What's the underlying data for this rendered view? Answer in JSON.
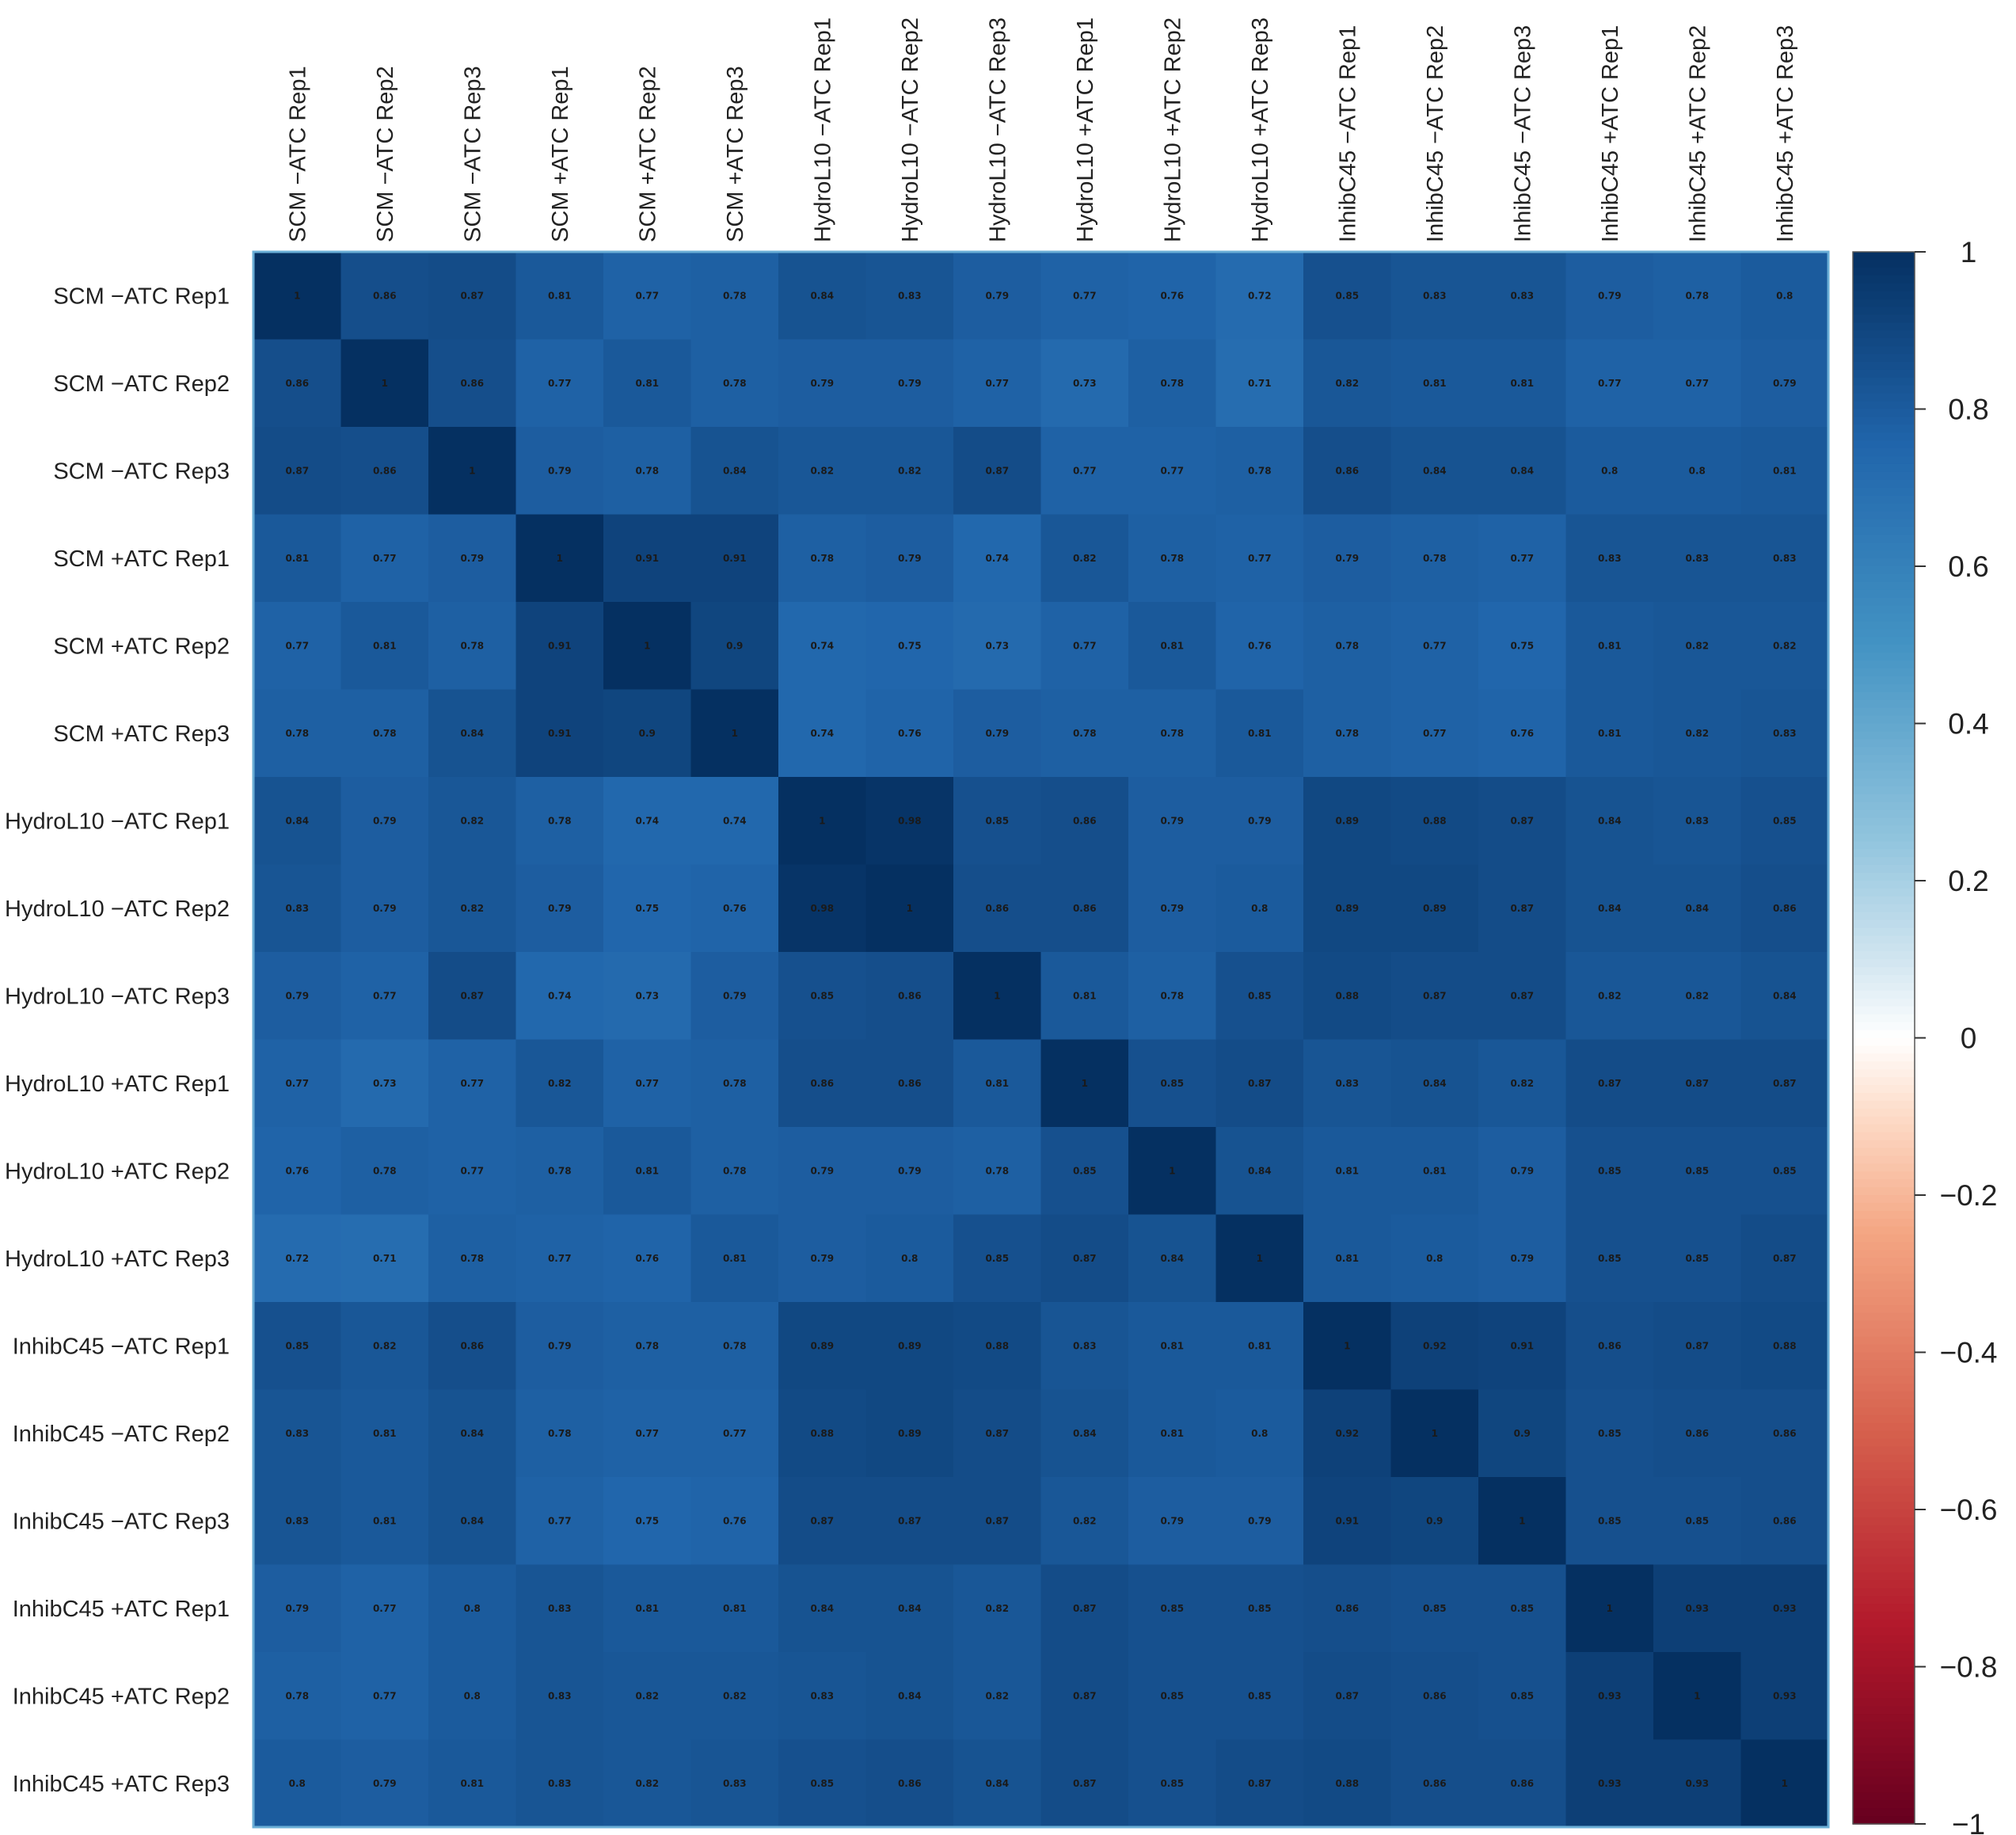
{
  "chart_data": {
    "type": "heatmap",
    "title": "",
    "labels": [
      "SCM −ATC Rep1",
      "SCM −ATC Rep2",
      "SCM −ATC Rep3",
      "SCM +ATC Rep1",
      "SCM +ATC Rep2",
      "SCM +ATC Rep3",
      "HydroL10 −ATC Rep1",
      "HydroL10 −ATC Rep2",
      "HydroL10 −ATC Rep3",
      "HydroL10 +ATC Rep1",
      "HydroL10 +ATC Rep2",
      "HydroL10 +ATC Rep3",
      "InhibC45 −ATC Rep1",
      "InhibC45 −ATC Rep2",
      "InhibC45 −ATC Rep3",
      "InhibC45 +ATC Rep1",
      "InhibC45 +ATC Rep2",
      "InhibC45 +ATC Rep3"
    ],
    "matrix": [
      [
        "1",
        "0.86",
        "0.87",
        "0.81",
        "0.77",
        "0.78",
        "0.84",
        "0.83",
        "0.79",
        "0.77",
        "0.76",
        "0.72",
        "0.85",
        "0.83",
        "0.83",
        "0.79",
        "0.78",
        "0.8"
      ],
      [
        "0.86",
        "1",
        "0.86",
        "0.77",
        "0.81",
        "0.78",
        "0.79",
        "0.79",
        "0.77",
        "0.73",
        "0.78",
        "0.71",
        "0.82",
        "0.81",
        "0.81",
        "0.77",
        "0.77",
        "0.79"
      ],
      [
        "0.87",
        "0.86",
        "1",
        "0.79",
        "0.78",
        "0.84",
        "0.82",
        "0.82",
        "0.87",
        "0.77",
        "0.77",
        "0.78",
        "0.86",
        "0.84",
        "0.84",
        "0.8",
        "0.8",
        "0.81"
      ],
      [
        "0.81",
        "0.77",
        "0.79",
        "1",
        "0.91",
        "0.91",
        "0.78",
        "0.79",
        "0.74",
        "0.82",
        "0.78",
        "0.77",
        "0.79",
        "0.78",
        "0.77",
        "0.83",
        "0.83",
        "0.83"
      ],
      [
        "0.77",
        "0.81",
        "0.78",
        "0.91",
        "1",
        "0.9",
        "0.74",
        "0.75",
        "0.73",
        "0.77",
        "0.81",
        "0.76",
        "0.78",
        "0.77",
        "0.75",
        "0.81",
        "0.82",
        "0.82"
      ],
      [
        "0.78",
        "0.78",
        "0.84",
        "0.91",
        "0.9",
        "1",
        "0.74",
        "0.76",
        "0.79",
        "0.78",
        "0.78",
        "0.81",
        "0.78",
        "0.77",
        "0.76",
        "0.81",
        "0.82",
        "0.83"
      ],
      [
        "0.84",
        "0.79",
        "0.82",
        "0.78",
        "0.74",
        "0.74",
        "1",
        "0.98",
        "0.85",
        "0.86",
        "0.79",
        "0.79",
        "0.89",
        "0.88",
        "0.87",
        "0.84",
        "0.83",
        "0.85"
      ],
      [
        "0.83",
        "0.79",
        "0.82",
        "0.79",
        "0.75",
        "0.76",
        "0.98",
        "1",
        "0.86",
        "0.86",
        "0.79",
        "0.8",
        "0.89",
        "0.89",
        "0.87",
        "0.84",
        "0.84",
        "0.86"
      ],
      [
        "0.79",
        "0.77",
        "0.87",
        "0.74",
        "0.73",
        "0.79",
        "0.85",
        "0.86",
        "1",
        "0.81",
        "0.78",
        "0.85",
        "0.88",
        "0.87",
        "0.87",
        "0.82",
        "0.82",
        "0.84"
      ],
      [
        "0.77",
        "0.73",
        "0.77",
        "0.82",
        "0.77",
        "0.78",
        "0.86",
        "0.86",
        "0.81",
        "1",
        "0.85",
        "0.87",
        "0.83",
        "0.84",
        "0.82",
        "0.87",
        "0.87",
        "0.87"
      ],
      [
        "0.76",
        "0.78",
        "0.77",
        "0.78",
        "0.81",
        "0.78",
        "0.79",
        "0.79",
        "0.78",
        "0.85",
        "1",
        "0.84",
        "0.81",
        "0.81",
        "0.79",
        "0.85",
        "0.85",
        "0.85"
      ],
      [
        "0.72",
        "0.71",
        "0.78",
        "0.77",
        "0.76",
        "0.81",
        "0.79",
        "0.8",
        "0.85",
        "0.87",
        "0.84",
        "1",
        "0.81",
        "0.8",
        "0.79",
        "0.85",
        "0.85",
        "0.87"
      ],
      [
        "0.85",
        "0.82",
        "0.86",
        "0.79",
        "0.78",
        "0.78",
        "0.89",
        "0.89",
        "0.88",
        "0.83",
        "0.81",
        "0.81",
        "1",
        "0.92",
        "0.91",
        "0.86",
        "0.87",
        "0.88"
      ],
      [
        "0.83",
        "0.81",
        "0.84",
        "0.78",
        "0.77",
        "0.77",
        "0.88",
        "0.89",
        "0.87",
        "0.84",
        "0.81",
        "0.8",
        "0.92",
        "1",
        "0.9",
        "0.85",
        "0.86",
        "0.86"
      ],
      [
        "0.83",
        "0.81",
        "0.84",
        "0.77",
        "0.75",
        "0.76",
        "0.87",
        "0.87",
        "0.87",
        "0.82",
        "0.79",
        "0.79",
        "0.91",
        "0.9",
        "1",
        "0.85",
        "0.85",
        "0.86"
      ],
      [
        "0.79",
        "0.77",
        "0.8",
        "0.83",
        "0.81",
        "0.81",
        "0.84",
        "0.84",
        "0.82",
        "0.87",
        "0.85",
        "0.85",
        "0.86",
        "0.85",
        "0.85",
        "1",
        "0.93",
        "0.93"
      ],
      [
        "0.78",
        "0.77",
        "0.8",
        "0.83",
        "0.82",
        "0.82",
        "0.83",
        "0.84",
        "0.82",
        "0.87",
        "0.85",
        "0.85",
        "0.87",
        "0.86",
        "0.85",
        "0.93",
        "1",
        "0.93"
      ],
      [
        "0.8",
        "0.79",
        "0.81",
        "0.83",
        "0.82",
        "0.83",
        "0.85",
        "0.86",
        "0.84",
        "0.87",
        "0.85",
        "0.87",
        "0.88",
        "0.86",
        "0.86",
        "0.93",
        "0.93",
        "1"
      ]
    ],
    "colorbar": {
      "ticks": [
        "1",
        "0.8",
        "0.6",
        "0.4",
        "0.2",
        "0",
        "−0.2",
        "−0.4",
        "−0.6",
        "−0.8",
        "−1"
      ],
      "range": [
        -1,
        1
      ]
    },
    "colors": {
      "neg": "#67001F",
      "mid": "#FFFFFF",
      "pos": "#053061"
    }
  }
}
